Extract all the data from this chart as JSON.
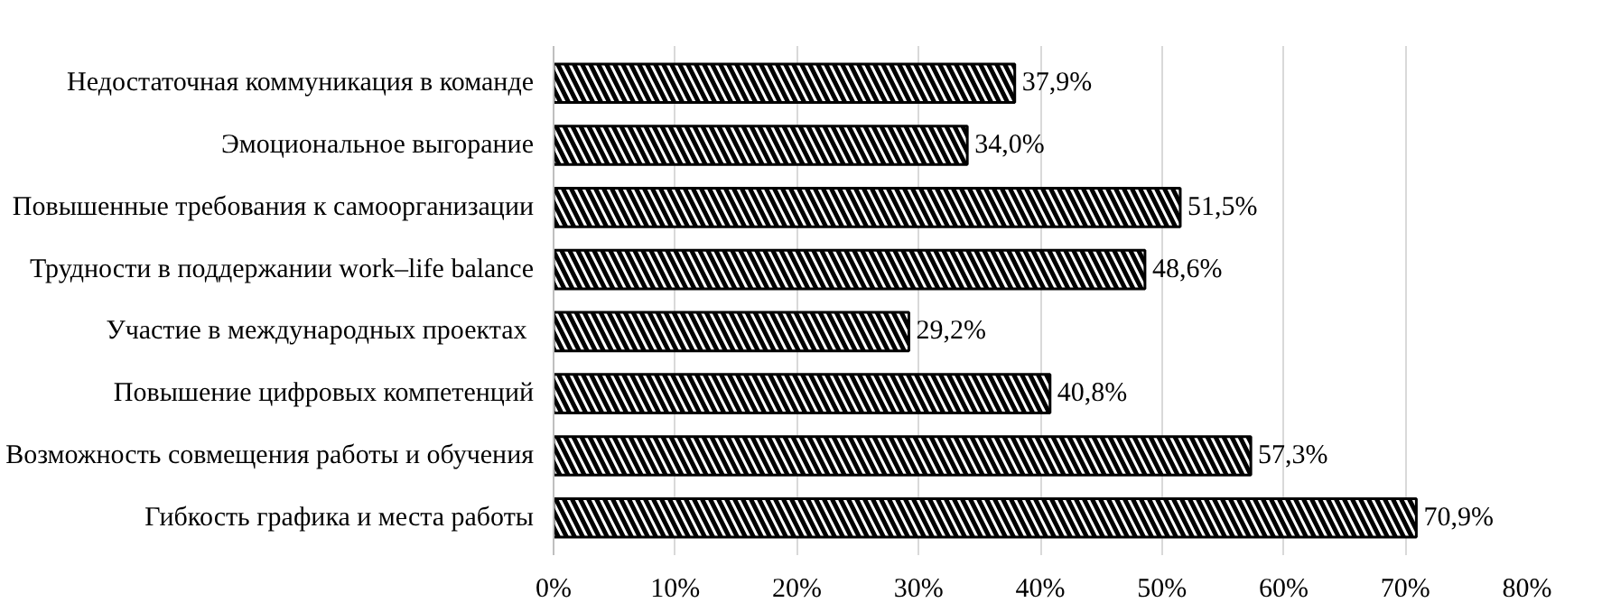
{
  "chart_data": {
    "type": "bar",
    "orientation": "horizontal",
    "categories": [
      "Недостаточная коммуникация в команде",
      "Эмоциональное выгорание",
      "Повышенные требования к самоорганизации",
      "Трудности в поддержании work–life balance",
      "Участие в международных  проектах",
      "Повышение цифровых компетенций",
      "Возможность совмещения работы и обучения",
      "Гибкость графика и места работы"
    ],
    "values": [
      37.9,
      34.0,
      51.5,
      48.6,
      29.2,
      40.8,
      57.3,
      70.9
    ],
    "value_labels": [
      "37,9%",
      "34,0%",
      "51,5%",
      "48,6%",
      "29,2%",
      "40,8%",
      "57,3%",
      "70,9%"
    ],
    "color": "#000000",
    "xlim": [
      0,
      80
    ],
    "xticks": [
      {
        "value": 0,
        "label": "0%"
      },
      {
        "value": 10,
        "label": "10%"
      },
      {
        "value": 20,
        "label": "20%"
      },
      {
        "value": 30,
        "label": "30%"
      },
      {
        "value": 40,
        "label": "40%"
      },
      {
        "value": 50,
        "label": "50%"
      },
      {
        "value": 60,
        "label": "60%"
      },
      {
        "value": 70,
        "label": "70%"
      },
      {
        "value": 80,
        "label": "80%"
      }
    ],
    "grid": "x"
  }
}
